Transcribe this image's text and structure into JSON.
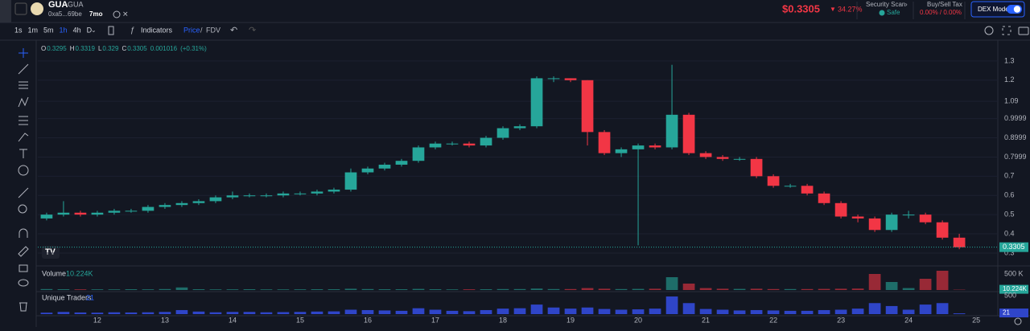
{
  "header": {
    "name": "GUA",
    "symbol": "GUA",
    "address": "0xa5...69be",
    "age": "7mo",
    "price": "$0.3305",
    "change": "34.27%",
    "security_title": "Security Scan",
    "security_status": "Safe",
    "tax_title": "Buy/Sell Tax",
    "tax_value": "0.00% / 0.00%",
    "dex_mode": "DEX Mode"
  },
  "toolbar": {
    "intervals": [
      "1s",
      "1m",
      "5m",
      "1h",
      "4h",
      "D"
    ],
    "indicators": "Indicators",
    "price": "Price",
    "fdv": "FDV"
  },
  "chart_data": {
    "type": "candlestick",
    "legend": {
      "open_label": "O",
      "open": 0.3295,
      "high_label": "H",
      "high": 0.3319,
      "low_label": "L",
      "low": 0.329,
      "close_label": "C",
      "close": 0.3305,
      "change": 0.001016,
      "change_pct": "(+0.31%)"
    },
    "x": [
      11.25,
      11.5,
      11.75,
      12,
      12.25,
      12.5,
      12.75,
      13,
      13.25,
      13.5,
      13.75,
      14,
      14.25,
      14.5,
      14.75,
      15,
      15.25,
      15.5,
      15.75,
      16,
      16.25,
      16.5,
      16.75,
      17,
      17.25,
      17.5,
      17.75,
      18,
      18.25,
      18.5,
      18.75,
      19,
      19.25,
      19.5,
      19.75,
      20,
      20.25,
      20.5,
      20.75,
      21,
      21.25,
      21.5,
      21.75,
      22,
      22.25,
      22.5,
      22.75,
      23,
      23.25,
      23.5,
      23.75,
      24,
      24.25,
      24.5,
      24.75
    ],
    "open": [
      0.48,
      0.5,
      0.51,
      0.5,
      0.51,
      0.52,
      0.52,
      0.54,
      0.55,
      0.56,
      0.57,
      0.59,
      0.6,
      0.6,
      0.6,
      0.61,
      0.61,
      0.62,
      0.63,
      0.72,
      0.74,
      0.76,
      0.78,
      0.85,
      0.87,
      0.87,
      0.86,
      0.9,
      0.95,
      0.96,
      1.21,
      1.21,
      1.2,
      0.93,
      0.82,
      0.84,
      0.86,
      0.85,
      1.02,
      0.82,
      0.8,
      0.79,
      0.79,
      0.7,
      0.65,
      0.65,
      0.61,
      0.56,
      0.49,
      0.48,
      0.42,
      0.5,
      0.5,
      0.46,
      0.38
    ],
    "high": [
      0.51,
      0.57,
      0.52,
      0.52,
      0.53,
      0.53,
      0.55,
      0.56,
      0.57,
      0.58,
      0.6,
      0.62,
      0.61,
      0.61,
      0.62,
      0.62,
      0.63,
      0.64,
      0.74,
      0.75,
      0.77,
      0.79,
      0.86,
      0.88,
      0.88,
      0.88,
      0.91,
      0.96,
      0.97,
      1.22,
      1.22,
      1.21,
      1.2,
      0.94,
      0.85,
      0.87,
      0.87,
      1.28,
      1.03,
      0.83,
      0.81,
      0.8,
      0.8,
      0.71,
      0.66,
      0.66,
      0.62,
      0.57,
      0.5,
      0.49,
      0.51,
      0.52,
      0.51,
      0.47,
      0.4
    ],
    "low": [
      0.47,
      0.49,
      0.49,
      0.49,
      0.5,
      0.51,
      0.51,
      0.53,
      0.54,
      0.55,
      0.56,
      0.58,
      0.59,
      0.59,
      0.59,
      0.6,
      0.6,
      0.61,
      0.62,
      0.71,
      0.73,
      0.75,
      0.77,
      0.84,
      0.86,
      0.85,
      0.85,
      0.89,
      0.94,
      0.95,
      1.19,
      1.19,
      0.86,
      0.81,
      0.8,
      0.34,
      0.84,
      0.84,
      0.81,
      0.79,
      0.78,
      0.78,
      0.69,
      0.64,
      0.64,
      0.6,
      0.55,
      0.48,
      0.46,
      0.41,
      0.41,
      0.48,
      0.45,
      0.37,
      0.32
    ],
    "close": [
      0.5,
      0.51,
      0.5,
      0.51,
      0.52,
      0.52,
      0.54,
      0.55,
      0.56,
      0.57,
      0.59,
      0.6,
      0.6,
      0.6,
      0.61,
      0.61,
      0.62,
      0.63,
      0.72,
      0.74,
      0.76,
      0.78,
      0.85,
      0.87,
      0.87,
      0.86,
      0.9,
      0.95,
      0.96,
      1.21,
      1.21,
      1.2,
      0.93,
      0.82,
      0.84,
      0.86,
      0.85,
      1.02,
      0.82,
      0.8,
      0.79,
      0.79,
      0.7,
      0.65,
      0.65,
      0.61,
      0.56,
      0.49,
      0.48,
      0.42,
      0.5,
      0.5,
      0.46,
      0.38,
      0.33
    ],
    "up_color": "#26a69a",
    "down_color": "#f23645",
    "xlim": [
      11.12,
      25.32
    ],
    "xticks": [
      12,
      13,
      14,
      15,
      16,
      17,
      18,
      19,
      20,
      21,
      22,
      23,
      24,
      25
    ],
    "ylim": [
      0.237,
      1.4
    ],
    "yticks": [
      1.3,
      1.2,
      1.09,
      0.9999,
      0.8999,
      0.7999,
      0.7,
      0.6,
      0.5,
      0.4,
      0.3
    ],
    "grid": true,
    "current": {
      "value": 0.3305,
      "label": "0.3305"
    },
    "volume": {
      "title": "Volume",
      "current": {
        "value": 10224,
        "label": "10.224K"
      },
      "ylim": [
        0,
        700000
      ],
      "yticks": [
        {
          "value": 500000,
          "label": "500 K"
        }
      ],
      "values": [
        30000,
        25000,
        20000,
        22000,
        20000,
        25000,
        22000,
        30000,
        80000,
        25000,
        20000,
        22000,
        25000,
        20000,
        20000,
        22000,
        25000,
        25000,
        40000,
        30000,
        25000,
        25000,
        35000,
        25000,
        20000,
        22000,
        25000,
        30000,
        30000,
        45000,
        30000,
        30000,
        60000,
        40000,
        30000,
        35000,
        40000,
        400000,
        200000,
        60000,
        40000,
        35000,
        40000,
        30000,
        30000,
        30000,
        35000,
        40000,
        45000,
        500000,
        250000,
        60000,
        350000,
        600000,
        10224
      ]
    },
    "traders": {
      "title": "Unique Traders",
      "color": "#2f45c8",
      "current": {
        "value": 21,
        "label": "21"
      },
      "ylim": [
        0,
        590
      ],
      "yticks": [
        500
      ],
      "values": [
        40,
        60,
        45,
        40,
        50,
        45,
        50,
        60,
        110,
        70,
        50,
        60,
        60,
        50,
        55,
        60,
        70,
        75,
        120,
        110,
        100,
        90,
        160,
        120,
        90,
        80,
        110,
        150,
        160,
        260,
        180,
        150,
        180,
        140,
        120,
        130,
        150,
        480,
        300,
        140,
        120,
        100,
        110,
        100,
        90,
        90,
        110,
        120,
        150,
        300,
        220,
        120,
        260,
        300,
        21
      ]
    }
  }
}
